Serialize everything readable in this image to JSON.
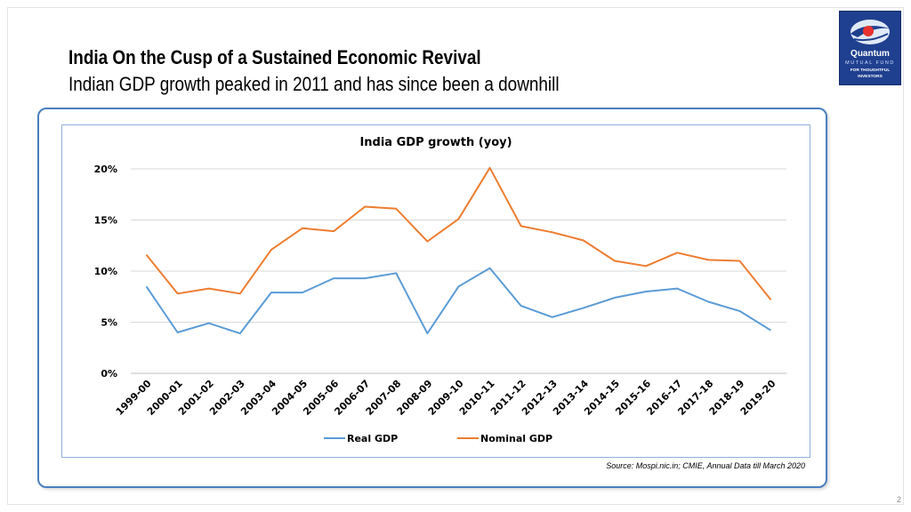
{
  "slide": {
    "title": "India On the Cusp of a Sustained Economic Revival",
    "subtitle": "Indian GDP growth peaked in 2011 and has since been a downhill",
    "source": "Source: Mospi.nic.in; CMIE, Annual Data till March 2020",
    "page_number": "2"
  },
  "logo": {
    "brand": "Quantum",
    "line2": "MUTUAL FUND",
    "tag1": "FOR THOUGHTFUL",
    "tag2": "INVESTORS",
    "color": "#1f3f8f"
  },
  "chart_data": {
    "type": "line",
    "title": "India GDP growth (yoy)",
    "categories": [
      "1999-00",
      "2000-01",
      "2001-02",
      "2002-03",
      "2003-04",
      "2004-05",
      "2005-06",
      "2006-07",
      "2007-08",
      "2008-09",
      "2009-10",
      "2010-11",
      "2011-12",
      "2012-13",
      "2013-14",
      "2014-15",
      "2015-16",
      "2016-17",
      "2017-18",
      "2018-19",
      "2019-20"
    ],
    "series": [
      {
        "name": "Real GDP",
        "color": "#5b9bd5",
        "values": [
          8.5,
          4.0,
          4.9,
          3.9,
          7.9,
          7.9,
          9.3,
          9.3,
          9.8,
          3.9,
          8.5,
          10.3,
          6.6,
          5.5,
          6.4,
          7.4,
          8.0,
          8.3,
          7.0,
          6.1,
          4.2
        ]
      },
      {
        "name": "Nominal GDP",
        "color": "#ed7d31",
        "values": [
          11.6,
          7.8,
          8.3,
          7.8,
          12.1,
          14.2,
          13.9,
          16.3,
          16.1,
          12.9,
          15.1,
          20.1,
          14.4,
          13.8,
          13.0,
          11.0,
          10.5,
          11.8,
          11.1,
          11.0,
          7.2
        ]
      }
    ],
    "y_ticks": [
      "0%",
      "5%",
      "10%",
      "15%",
      "20%"
    ],
    "ylim": [
      0,
      20
    ],
    "grid": true,
    "legend": "bottom"
  }
}
